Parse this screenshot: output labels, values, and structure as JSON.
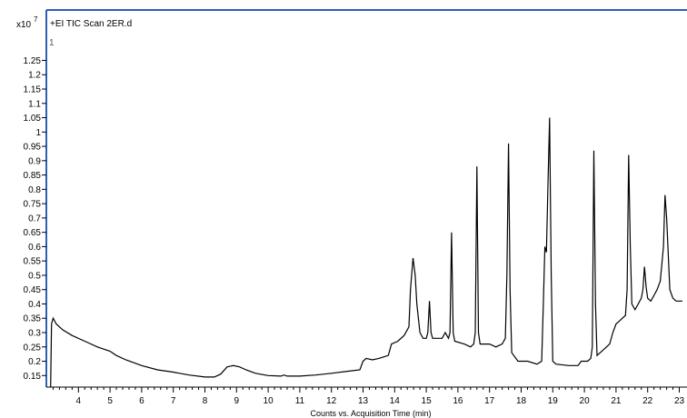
{
  "chart_data": {
    "type": "line",
    "title": "+EI TIC Scan 2ER.d",
    "trace_number": "1",
    "y_multiplier_base": "x10",
    "y_multiplier_exp": "7",
    "xlabel": "Counts vs. Acquisition Time (min)",
    "ylabel": "",
    "xlim": [
      3.1,
      23.1
    ],
    "ylim": [
      0.085,
      1.27
    ],
    "x_ticks": [
      4,
      5,
      6,
      7,
      8,
      9,
      10,
      11,
      12,
      13,
      14,
      15,
      16,
      17,
      18,
      19,
      20,
      21,
      22,
      23
    ],
    "y_ticks": [
      "0.15",
      "0.2",
      "0.25",
      "0.3",
      "0.35",
      "0.4",
      "0.45",
      "0.5",
      "0.55",
      "0.6",
      "0.65",
      "0.7",
      "0.75",
      "0.8",
      "0.85",
      "0.9",
      "0.95",
      "1",
      "1.05",
      "1.1",
      "1.15",
      "1.2",
      "1.25"
    ],
    "grid": false,
    "series": [
      {
        "name": "",
        "color": "#000000",
        "points": [
          [
            3.12,
            0.09
          ],
          [
            3.15,
            0.33
          ],
          [
            3.2,
            0.35
          ],
          [
            3.3,
            0.33
          ],
          [
            3.5,
            0.31
          ],
          [
            3.8,
            0.29
          ],
          [
            4.2,
            0.27
          ],
          [
            4.6,
            0.25
          ],
          [
            5.0,
            0.235
          ],
          [
            5.2,
            0.22
          ],
          [
            5.5,
            0.205
          ],
          [
            6.0,
            0.185
          ],
          [
            6.5,
            0.17
          ],
          [
            7.0,
            0.162
          ],
          [
            7.2,
            0.158
          ],
          [
            7.5,
            0.152
          ],
          [
            8.0,
            0.145
          ],
          [
            8.3,
            0.145
          ],
          [
            8.5,
            0.155
          ],
          [
            8.7,
            0.18
          ],
          [
            8.9,
            0.185
          ],
          [
            9.1,
            0.18
          ],
          [
            9.3,
            0.17
          ],
          [
            9.6,
            0.158
          ],
          [
            10.0,
            0.15
          ],
          [
            10.4,
            0.148
          ],
          [
            10.5,
            0.152
          ],
          [
            10.6,
            0.148
          ],
          [
            11.0,
            0.148
          ],
          [
            11.5,
            0.152
          ],
          [
            12.0,
            0.158
          ],
          [
            12.5,
            0.165
          ],
          [
            12.9,
            0.17
          ],
          [
            13.0,
            0.2
          ],
          [
            13.1,
            0.21
          ],
          [
            13.3,
            0.205
          ],
          [
            13.5,
            0.21
          ],
          [
            13.8,
            0.22
          ],
          [
            13.9,
            0.26
          ],
          [
            14.1,
            0.27
          ],
          [
            14.3,
            0.29
          ],
          [
            14.45,
            0.32
          ],
          [
            14.5,
            0.45
          ],
          [
            14.58,
            0.56
          ],
          [
            14.65,
            0.5
          ],
          [
            14.7,
            0.4
          ],
          [
            14.8,
            0.3
          ],
          [
            14.9,
            0.28
          ],
          [
            15.0,
            0.28
          ],
          [
            15.05,
            0.3
          ],
          [
            15.1,
            0.41
          ],
          [
            15.15,
            0.3
          ],
          [
            15.2,
            0.28
          ],
          [
            15.5,
            0.28
          ],
          [
            15.6,
            0.3
          ],
          [
            15.7,
            0.28
          ],
          [
            15.75,
            0.3
          ],
          [
            15.8,
            0.65
          ],
          [
            15.85,
            0.3
          ],
          [
            15.9,
            0.27
          ],
          [
            16.2,
            0.26
          ],
          [
            16.4,
            0.25
          ],
          [
            16.5,
            0.26
          ],
          [
            16.55,
            0.3
          ],
          [
            16.6,
            0.88
          ],
          [
            16.65,
            0.3
          ],
          [
            16.7,
            0.26
          ],
          [
            17.0,
            0.26
          ],
          [
            17.2,
            0.25
          ],
          [
            17.4,
            0.26
          ],
          [
            17.5,
            0.28
          ],
          [
            17.55,
            0.5
          ],
          [
            17.6,
            0.96
          ],
          [
            17.65,
            0.45
          ],
          [
            17.7,
            0.23
          ],
          [
            17.9,
            0.2
          ],
          [
            18.2,
            0.2
          ],
          [
            18.5,
            0.19
          ],
          [
            18.65,
            0.2
          ],
          [
            18.7,
            0.4
          ],
          [
            18.75,
            0.6
          ],
          [
            18.8,
            0.58
          ],
          [
            18.85,
            0.83
          ],
          [
            18.9,
            1.05
          ],
          [
            18.95,
            0.5
          ],
          [
            19.0,
            0.2
          ],
          [
            19.1,
            0.19
          ],
          [
            19.5,
            0.185
          ],
          [
            19.8,
            0.185
          ],
          [
            19.9,
            0.2
          ],
          [
            20.0,
            0.2
          ],
          [
            20.1,
            0.2
          ],
          [
            20.2,
            0.21
          ],
          [
            20.25,
            0.25
          ],
          [
            20.3,
            0.935
          ],
          [
            20.35,
            0.4
          ],
          [
            20.4,
            0.22
          ],
          [
            20.6,
            0.24
          ],
          [
            20.8,
            0.26
          ],
          [
            20.9,
            0.3
          ],
          [
            21.0,
            0.33
          ],
          [
            21.1,
            0.34
          ],
          [
            21.2,
            0.35
          ],
          [
            21.3,
            0.36
          ],
          [
            21.35,
            0.45
          ],
          [
            21.4,
            0.92
          ],
          [
            21.45,
            0.6
          ],
          [
            21.5,
            0.4
          ],
          [
            21.6,
            0.38
          ],
          [
            21.7,
            0.4
          ],
          [
            21.8,
            0.42
          ],
          [
            21.85,
            0.45
          ],
          [
            21.9,
            0.53
          ],
          [
            21.95,
            0.46
          ],
          [
            22.0,
            0.42
          ],
          [
            22.1,
            0.41
          ],
          [
            22.2,
            0.43
          ],
          [
            22.3,
            0.45
          ],
          [
            22.4,
            0.48
          ],
          [
            22.5,
            0.6
          ],
          [
            22.55,
            0.78
          ],
          [
            22.6,
            0.7
          ],
          [
            22.7,
            0.45
          ],
          [
            22.8,
            0.42
          ],
          [
            22.9,
            0.41
          ],
          [
            23.1,
            0.41
          ]
        ]
      }
    ]
  },
  "colors": {
    "trace": "#000000",
    "plot_border": "#2c5fb8",
    "background": "#ffffff"
  }
}
